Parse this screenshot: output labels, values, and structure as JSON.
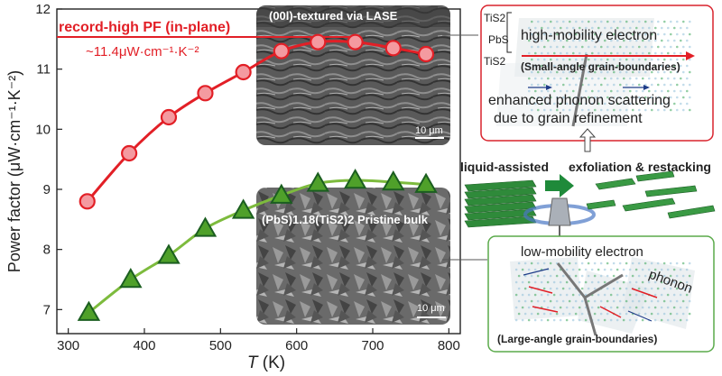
{
  "chart_data": {
    "type": "line",
    "xlabel_italic": "T",
    "xlabel_unit": " (K)",
    "ylabel": "Power factor (μW·cm⁻¹·K⁻²)",
    "xlim": [
      285,
      815
    ],
    "ylim": [
      6.6,
      12
    ],
    "xticks": [
      "300",
      "400",
      "500",
      "600",
      "700",
      "800"
    ],
    "yticks": [
      "7",
      "8",
      "9",
      "10",
      "11",
      "12"
    ],
    "series": [
      {
        "key": "textured",
        "color": "#e21f26",
        "marker": "circle",
        "marker_fill": "#f49aa0",
        "x": [
          325,
          380,
          432,
          480,
          530,
          580,
          628,
          677,
          727,
          770
        ],
        "y": [
          8.8,
          9.6,
          10.2,
          10.6,
          10.95,
          11.3,
          11.45,
          11.45,
          11.35,
          11.25
        ]
      },
      {
        "key": "pristine",
        "color": "#7dbb3d",
        "marker": "triangle",
        "marker_fill": "#4fa02a",
        "x": [
          327,
          382,
          432,
          480,
          530,
          580,
          628,
          677,
          727,
          770
        ],
        "y": [
          6.95,
          7.5,
          7.9,
          8.35,
          8.65,
          8.9,
          9.1,
          9.15,
          9.12,
          9.08
        ]
      }
    ],
    "annotation_title": "record-high PF (in-plane)",
    "annotation_value": "~11.4μW·cm⁻¹·K⁻²",
    "annotation_color": "#e21f26"
  },
  "sem_top": {
    "title": "(00l)-textured via LASE",
    "scale": "10 μm"
  },
  "sem_bottom": {
    "title": "(PbS)1.18(TiS2)2 Pristine bulk",
    "scale": "10 μm"
  },
  "callout_top": {
    "layer1": "TiS2",
    "layer2": "PbS",
    "layer3": "TiS2",
    "line1": "high-mobility electron",
    "line2": "(Small-angle grain-boundaries)",
    "line3": "enhanced phonon scattering",
    "line4": "due to grain refinement",
    "border": "#d9232d"
  },
  "process": {
    "label_left": "liquid-assisted",
    "label_right": "exfoliation & restacking"
  },
  "callout_bottom": {
    "line1": "low-mobility electron",
    "phonon": "phonon",
    "line3": "(Large-angle grain-boundaries)",
    "border": "#5aaa4a"
  }
}
